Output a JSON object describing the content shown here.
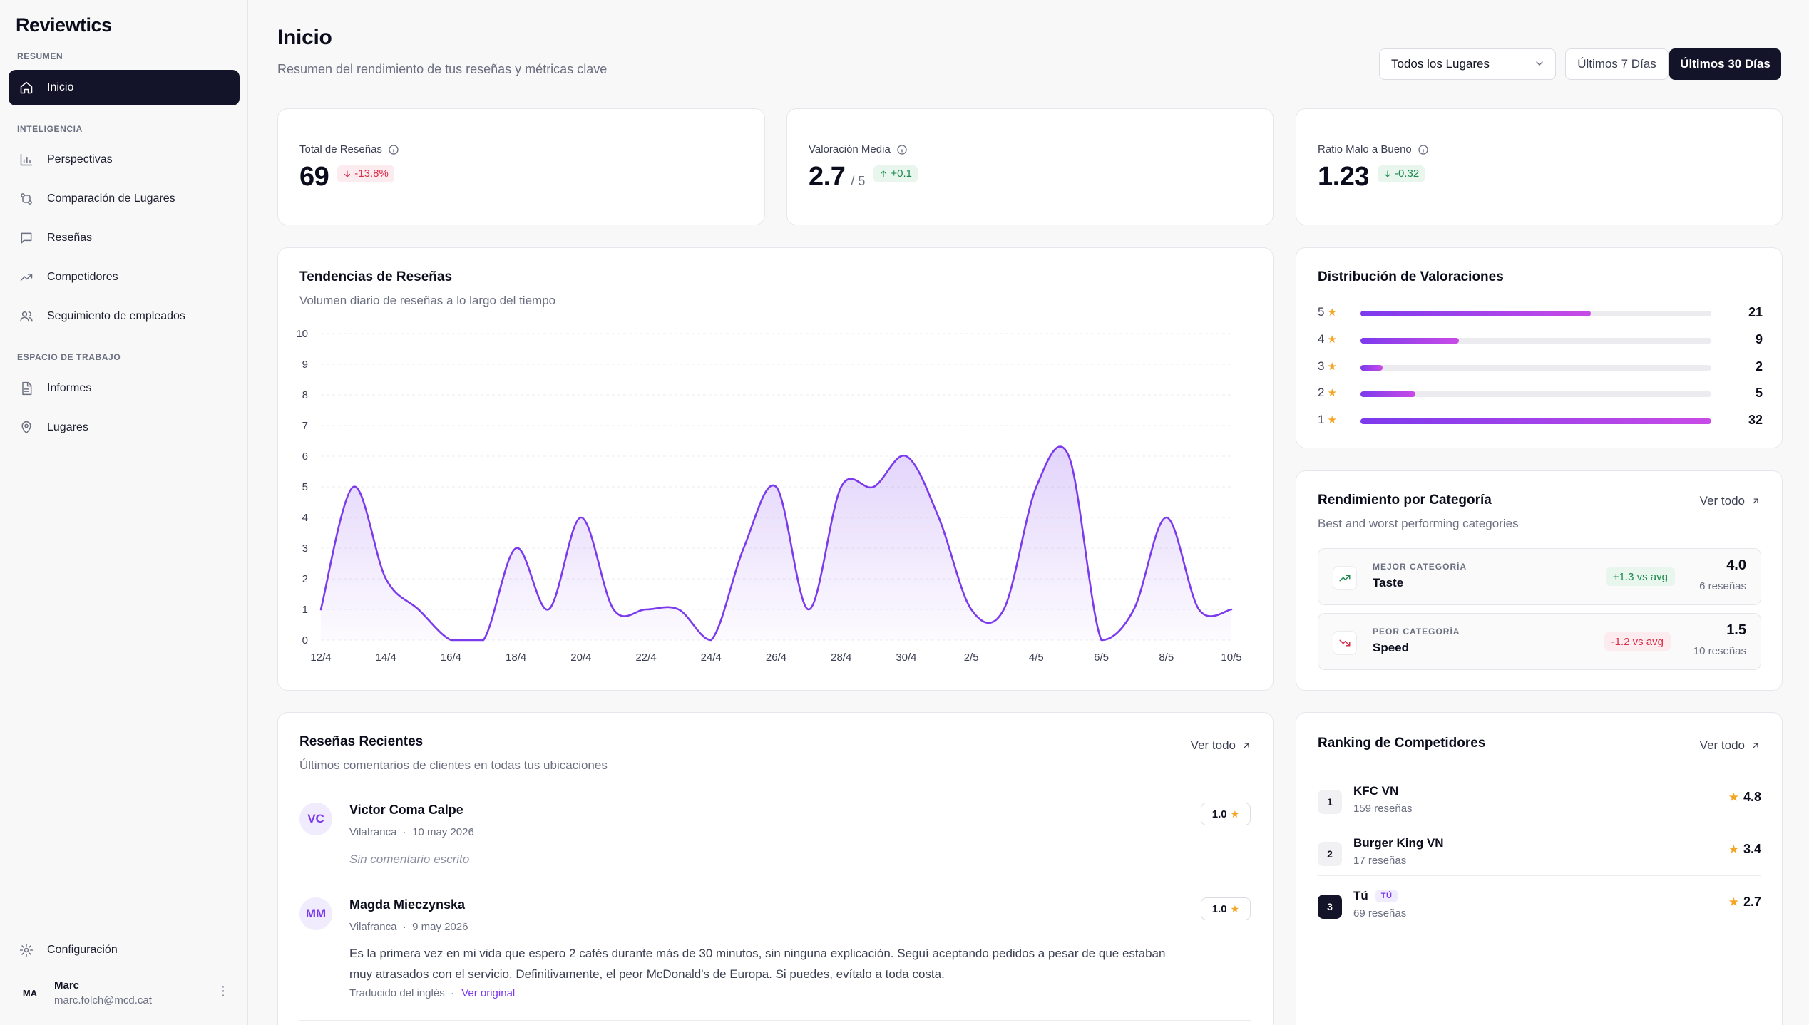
{
  "app": {
    "name": "Reviewtics"
  },
  "sidebar": {
    "sections": {
      "resumen": "RESUMEN",
      "inteligencia": "INTELIGENCIA",
      "espacio": "ESPACIO DE TRABAJO"
    },
    "items": [
      {
        "label": "Inicio",
        "icon": "home-icon",
        "active": true
      },
      {
        "label": "Perspectivas",
        "icon": "bar-chart-icon"
      },
      {
        "label": "Comparación de Lugares",
        "icon": "compare-icon"
      },
      {
        "label": "Reseñas",
        "icon": "message-icon"
      },
      {
        "label": "Competidores",
        "icon": "trending-up-icon"
      },
      {
        "label": "Seguimiento de empleados",
        "icon": "users-icon"
      },
      {
        "label": "Informes",
        "icon": "file-icon"
      },
      {
        "label": "Lugares",
        "icon": "map-pin-icon"
      }
    ],
    "settings_label": "Configuración",
    "user": {
      "initials": "MA",
      "name": "Marc",
      "email": "marc.folch@mcd.cat"
    }
  },
  "header": {
    "title": "Inicio",
    "subtitle": "Resumen del rendimiento de tus reseñas y métricas clave",
    "location_select": "Todos los Lugares",
    "range_7": "Últimos 7 Días",
    "range_30": "Últimos 30 Días"
  },
  "kpis": [
    {
      "label": "Total de Reseñas",
      "value": "69",
      "suffix": "",
      "delta": "-13.8%",
      "trend": "down",
      "tone": "neg"
    },
    {
      "label": "Valoración Media",
      "value": "2.7",
      "suffix": "/ 5",
      "delta": "+0.1",
      "trend": "up",
      "tone": "pos"
    },
    {
      "label": "Ratio Malo a Bueno",
      "value": "1.23",
      "suffix": "",
      "delta": "-0.32",
      "trend": "down",
      "tone": "pos"
    }
  ],
  "trends": {
    "title": "Tendencias de Reseñas",
    "subtitle": "Volumen diario de reseñas a lo largo del tiempo"
  },
  "chart_data": {
    "type": "area",
    "title": "Tendencias de Reseñas",
    "ylim": [
      0,
      10
    ],
    "yticks": [
      0,
      1,
      2,
      3,
      4,
      5,
      6,
      7,
      8,
      9,
      10
    ],
    "xtick_labels": [
      "12/4",
      "14/4",
      "16/4",
      "18/4",
      "20/4",
      "22/4",
      "24/4",
      "26/4",
      "28/4",
      "30/4",
      "2/5",
      "4/5",
      "6/5",
      "8/5",
      "10/5"
    ],
    "x": [
      "12/4",
      "13/4",
      "14/4",
      "15/4",
      "16/4",
      "17/4",
      "18/4",
      "19/4",
      "20/4",
      "21/4",
      "22/4",
      "23/4",
      "24/4",
      "25/4",
      "26/4",
      "27/4",
      "28/4",
      "29/4",
      "30/4",
      "1/5",
      "2/5",
      "3/5",
      "4/5",
      "5/5",
      "6/5",
      "7/5",
      "8/5",
      "9/5",
      "10/5"
    ],
    "values": [
      1,
      5,
      2,
      1,
      0,
      0,
      3,
      1,
      4,
      1,
      1,
      1,
      0,
      3,
      5,
      1,
      5,
      5,
      6,
      4,
      1,
      1,
      5,
      6,
      0,
      1,
      4,
      1,
      1
    ],
    "grid": true,
    "color": "#7c3aed"
  },
  "distribution": {
    "title": "Distribución de Valoraciones",
    "rows": [
      {
        "stars": "5",
        "count": "21",
        "value": 21
      },
      {
        "stars": "4",
        "count": "9",
        "value": 9
      },
      {
        "stars": "3",
        "count": "2",
        "value": 2
      },
      {
        "stars": "2",
        "count": "5",
        "value": 5
      },
      {
        "stars": "1",
        "count": "32",
        "value": 32
      }
    ],
    "max": 32
  },
  "category": {
    "title": "Rendimiento por Categoría",
    "subtitle": "Best and worst performing categories",
    "view_all": "Ver todo",
    "best": {
      "kicker": "MEJOR CATEGORÍA",
      "name": "Taste",
      "delta": "+1.3 vs avg",
      "score": "4.0",
      "count": "6 reseñas"
    },
    "worst": {
      "kicker": "PEOR CATEGORÍA",
      "name": "Speed",
      "delta": "-1.2 vs avg",
      "score": "1.5",
      "count": "10 reseñas"
    }
  },
  "reviews": {
    "title": "Reseñas Recientes",
    "subtitle": "Últimos comentarios de clientes en todas tus ubicaciones",
    "view_all": "Ver todo",
    "items": [
      {
        "initials": "VC",
        "name": "Victor Coma Calpe",
        "location": "Vilafranca",
        "date": "10 may 2026",
        "rating": "1.0",
        "text": "Sin comentario escrito",
        "empty": true
      },
      {
        "initials": "MM",
        "name": "Magda Mieczynska",
        "location": "Vilafranca",
        "date": "9 may 2026",
        "rating": "1.0",
        "text": "Es la primera vez en mi vida que espero 2 cafés durante más de 30 minutos, sin ninguna explicación. Seguí aceptando pedidos a pesar de que estaban muy atrasados con el servicio. Definitivamente, el peor McDonald's de Europa. Si puedes, evítalo a toda costa.",
        "translated": "Traducido del inglés",
        "original_link": "Ver original"
      }
    ]
  },
  "competitors": {
    "title": "Ranking de Competidores",
    "view_all": "Ver todo",
    "you_tag": "TÚ",
    "items": [
      {
        "rank": "1",
        "name": "KFC VN",
        "count": "159 reseñas",
        "score": "4.8"
      },
      {
        "rank": "2",
        "name": "Burger King VN",
        "count": "17 reseñas",
        "score": "3.4"
      },
      {
        "rank": "3",
        "name": "Tú",
        "count": "69 reseñas",
        "score": "2.7",
        "me": true
      }
    ]
  }
}
